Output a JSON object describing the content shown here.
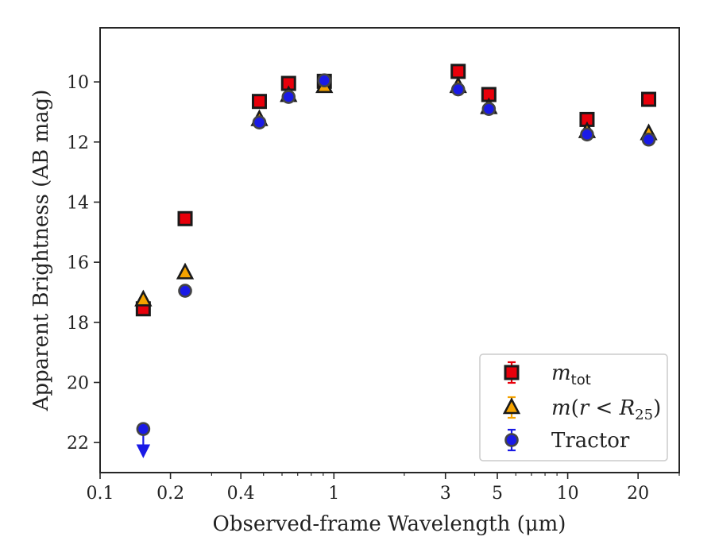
{
  "chart_data": {
    "type": "scatter",
    "xlabel": "Observed-frame Wavelength (μm)",
    "ylabel": "Apparent Brightness (AB mag)",
    "xscale": "log",
    "xlim": [
      0.1,
      30
    ],
    "ylim": [
      23,
      8.2
    ],
    "y_inverted": true,
    "x_ticks": [
      {
        "value": 0.1,
        "label": "0.1"
      },
      {
        "value": 0.2,
        "label": "0.2"
      },
      {
        "value": 0.4,
        "label": "0.4"
      },
      {
        "value": 1,
        "label": "1"
      },
      {
        "value": 3,
        "label": "3"
      },
      {
        "value": 5,
        "label": "5"
      },
      {
        "value": 10,
        "label": "10"
      },
      {
        "value": 20,
        "label": "20"
      }
    ],
    "x_minor_ticks": [
      0.3,
      0.5,
      0.6,
      0.7,
      0.8,
      0.9,
      2,
      4,
      6,
      7,
      8,
      9,
      30
    ],
    "y_ticks": [
      10,
      12,
      14,
      16,
      18,
      20,
      22
    ],
    "grid": false,
    "legend_position": "lower-right",
    "series": [
      {
        "name": "m_tot",
        "marker": "square",
        "color": "#e8000b",
        "points": [
          {
            "x": 0.153,
            "y": 17.55
          },
          {
            "x": 0.231,
            "y": 14.55
          },
          {
            "x": 0.48,
            "y": 10.65
          },
          {
            "x": 0.64,
            "y": 10.05
          },
          {
            "x": 0.91,
            "y": 9.98
          },
          {
            "x": 3.4,
            "y": 9.65
          },
          {
            "x": 4.6,
            "y": 10.42
          },
          {
            "x": 12.1,
            "y": 11.25
          },
          {
            "x": 22.2,
            "y": 10.58
          }
        ]
      },
      {
        "name": "m(r < R_25)",
        "marker": "triangle",
        "color": "#f5a300",
        "points": [
          {
            "x": 0.153,
            "y": 17.25
          },
          {
            "x": 0.231,
            "y": 16.35
          },
          {
            "x": 0.48,
            "y": 11.25
          },
          {
            "x": 0.64,
            "y": 10.45
          },
          {
            "x": 0.91,
            "y": 10.15
          },
          {
            "x": 3.4,
            "y": 10.15
          },
          {
            "x": 4.6,
            "y": 10.85
          },
          {
            "x": 12.1,
            "y": 11.65
          },
          {
            "x": 22.2,
            "y": 11.72
          }
        ]
      },
      {
        "name": "Tractor",
        "marker": "circle",
        "color": "#1a1ae6",
        "points": [
          {
            "x": 0.153,
            "y": 21.55,
            "upper_limit": true
          },
          {
            "x": 0.231,
            "y": 16.95
          },
          {
            "x": 0.48,
            "y": 11.35
          },
          {
            "x": 0.64,
            "y": 10.5
          },
          {
            "x": 0.91,
            "y": 9.95
          },
          {
            "x": 3.4,
            "y": 10.25
          },
          {
            "x": 4.6,
            "y": 10.9
          },
          {
            "x": 12.1,
            "y": 11.75
          },
          {
            "x": 22.2,
            "y": 11.92
          }
        ]
      }
    ]
  }
}
